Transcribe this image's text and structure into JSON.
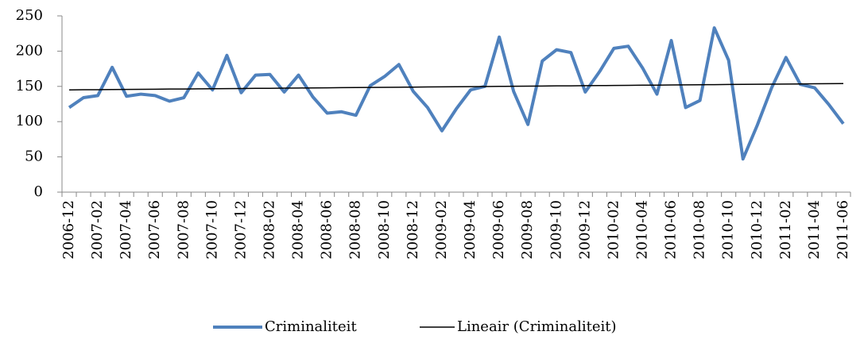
{
  "chart_data": {
    "type": "line",
    "categories": [
      "2006-12",
      null,
      "2007-02",
      null,
      "2007-04",
      null,
      "2007-06",
      null,
      "2007-08",
      null,
      "2007-10",
      null,
      "2007-12",
      null,
      "2008-02",
      null,
      "2008-04",
      null,
      "2008-06",
      null,
      "2008-08",
      null,
      "2008-10",
      null,
      "2008-12",
      null,
      "2009-02",
      null,
      "2009-04",
      null,
      "2009-06",
      null,
      "2009-08",
      null,
      "2009-10",
      null,
      "2009-12",
      null,
      "2010-02",
      null,
      "2010-04",
      null,
      "2010-06",
      null,
      "2010-08",
      null,
      "2010-10",
      null,
      "2010-12",
      null,
      "2011-02",
      null,
      "2011-04",
      null,
      "2011-06"
    ],
    "series": [
      {
        "name": "Criminaliteit",
        "color": "#4f81bd",
        "width": 4,
        "values": [
          120,
          134,
          137,
          177,
          136,
          139,
          137,
          129,
          134,
          169,
          145,
          194,
          141,
          166,
          167,
          142,
          166,
          135,
          112,
          114,
          109,
          151,
          164,
          181,
          143,
          120,
          87,
          118,
          145,
          150,
          220,
          143,
          96,
          186,
          202,
          198,
          142,
          171,
          204,
          207,
          176,
          139,
          215,
          120,
          130,
          233,
          187,
          47,
          95,
          148,
          191,
          153,
          148,
          124,
          97
        ]
      },
      {
        "name": "Lineair (Criminaliteit)",
        "color": "#000000",
        "width": 1.5,
        "values": [
          145,
          145.2,
          145.3,
          145.5,
          145.7,
          145.8,
          146,
          146.2,
          146.3,
          146.5,
          146.7,
          146.8,
          147,
          147.2,
          147.3,
          147.5,
          147.7,
          147.8,
          148,
          148.2,
          148.3,
          148.5,
          148.7,
          148.8,
          149,
          149.2,
          149.3,
          149.5,
          149.7,
          149.8,
          150,
          150.2,
          150.3,
          150.5,
          150.7,
          150.8,
          151,
          151.2,
          151.3,
          151.5,
          151.7,
          151.8,
          152,
          152.2,
          152.3,
          152.5,
          152.7,
          152.8,
          153,
          153.2,
          153.3,
          153.5,
          153.7,
          153.8,
          154
        ]
      }
    ],
    "ylim": [
      0,
      250
    ],
    "yticks": [
      0,
      50,
      100,
      150,
      200,
      250
    ],
    "grid": false,
    "legend": "bottom"
  }
}
